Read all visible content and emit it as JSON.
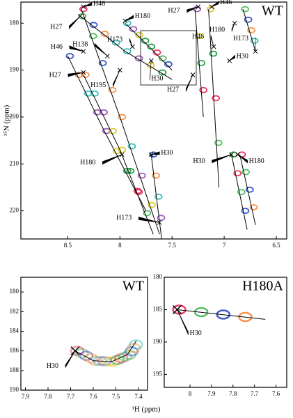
{
  "chart_data": [
    {
      "type": "line",
      "title": "WT",
      "ylabel": "¹⁵N (ppm)",
      "xlim": [
        8.95,
        6.4
      ],
      "ylim": [
        175.5,
        226
      ],
      "xticks": [
        8.5,
        8.0,
        7.5,
        7.0,
        6.5
      ],
      "yticks": [
        180,
        190,
        200,
        210,
        220
      ],
      "series": [
        {
          "color": "#000000",
          "x": [
            8.37,
            8.0,
            7.62
          ],
          "values": [
            177,
            200,
            225
          ]
        },
        {
          "color": "#000000",
          "x": [
            8.38,
            7.95,
            7.5
          ],
          "values": [
            178.5,
            186,
            192
          ]
        },
        {
          "color": "#000000",
          "x": [
            8.5,
            8.15,
            7.75
          ],
          "values": [
            187,
            203,
            220
          ]
        },
        {
          "color": "#000000",
          "x": [
            8.35,
            8.0,
            7.68
          ],
          "values": [
            191,
            207,
            225
          ]
        },
        {
          "color": "#000000",
          "x": [
            7.95,
            7.72,
            7.5
          ],
          "values": [
            180,
            185,
            190
          ]
        },
        {
          "color": "#000000",
          "x": [
            7.28,
            7.2
          ],
          "values": [
            177,
            200
          ]
        },
        {
          "color": "#000000",
          "x": [
            7.15,
            7.05
          ],
          "values": [
            177,
            215
          ]
        },
        {
          "color": "#000000",
          "x": [
            6.93,
            6.78
          ],
          "values": [
            208,
            224
          ]
        },
        {
          "color": "#000000",
          "x": [
            6.85,
            6.7
          ],
          "values": [
            208,
            223
          ]
        },
        {
          "color": "#000000",
          "x": [
            6.82,
            6.7
          ],
          "values": [
            177,
            186
          ]
        },
        {
          "color": "#000000",
          "x": [
            7.7,
            7.6
          ],
          "values": [
            208,
            226
          ]
        }
      ],
      "annotations": [
        {
          "text": "H46",
          "x": 8.35,
          "y": 176.5
        },
        {
          "text": "H27",
          "x": 8.38,
          "y": 178.5
        },
        {
          "text": "H180",
          "x": 7.95,
          "y": 179.5
        },
        {
          "text": "H173",
          "x": 7.88,
          "y": 185
        },
        {
          "text": "H138",
          "x": 8.12,
          "y": 187
        },
        {
          "text": "H46",
          "x": 8.35,
          "y": 186
        },
        {
          "text": "H27",
          "x": 8.35,
          "y": 190.5
        },
        {
          "text": "H195",
          "x": 8.0,
          "y": 190
        },
        {
          "text": "H30",
          "x": 7.7,
          "y": 188
        },
        {
          "text": "H27",
          "x": 7.3,
          "y": 191
        },
        {
          "text": "H27",
          "x": 7.25,
          "y": 176.5
        },
        {
          "text": "H46",
          "x": 7.12,
          "y": 176.5
        },
        {
          "text": "H180",
          "x": 6.9,
          "y": 180
        },
        {
          "text": "H46",
          "x": 7.1,
          "y": 185
        },
        {
          "text": "H173",
          "x": 6.7,
          "y": 186
        },
        {
          "text": "H30",
          "x": 6.95,
          "y": 188
        },
        {
          "text": "H180",
          "x": 7.98,
          "y": 208
        },
        {
          "text": "H30",
          "x": 7.7,
          "y": 208
        },
        {
          "text": "H30",
          "x": 6.93,
          "y": 208
        },
        {
          "text": "H180",
          "x": 6.87,
          "y": 208
        },
        {
          "text": "H173",
          "x": 7.62,
          "y": 222.5
        }
      ]
    },
    {
      "type": "line",
      "title": "WT",
      "xlabel": "¹H (ppm)",
      "xlim": [
        7.92,
        7.36
      ],
      "ylim": [
        178.5,
        190
      ],
      "xticks": [
        7.9,
        7.8,
        7.7,
        7.6,
        7.5,
        7.4
      ],
      "yticks": [
        180,
        182,
        184,
        186,
        188,
        190
      ],
      "series": [
        {
          "color": "#000000",
          "x": [
            7.68,
            7.6,
            7.52,
            7.45,
            7.41
          ],
          "values": [
            186,
            187,
            187.1,
            186.4,
            185
          ]
        }
      ],
      "annotations": [
        {
          "text": "H30",
          "x": 7.68,
          "y": 186
        }
      ]
    },
    {
      "type": "line",
      "title": "H180A",
      "xlim": [
        8.12,
        7.55
      ],
      "ylim": [
        180,
        197
      ],
      "xticks": [
        8.0,
        7.9,
        7.8,
        7.7,
        7.6
      ],
      "yticks": [
        180,
        185,
        190,
        195
      ],
      "series": [
        {
          "color": "#000000",
          "x": [
            8.06,
            7.65
          ],
          "values": [
            185,
            186.5
          ]
        }
      ],
      "annotations": [
        {
          "text": "H30",
          "x": 8.06,
          "y": 185
        }
      ]
    }
  ]
}
